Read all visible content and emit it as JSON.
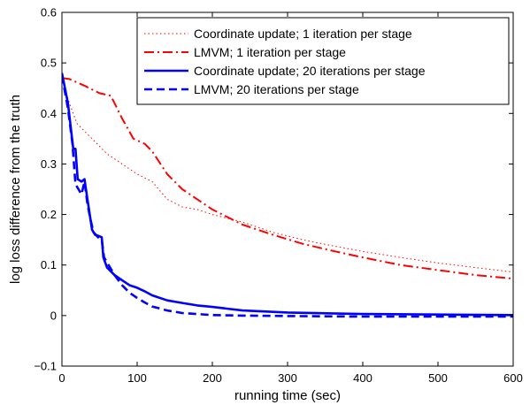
{
  "chart_data": {
    "type": "line",
    "title": "",
    "xlabel": "running time (sec)",
    "ylabel": "log loss difference from the truth",
    "xlim": [
      0,
      600
    ],
    "ylim": [
      -0.1,
      0.6
    ],
    "xticks": [
      0,
      100,
      200,
      300,
      400,
      500,
      600
    ],
    "xtick_labels": [
      "0",
      "100",
      "200",
      "300",
      "400",
      "500",
      "600"
    ],
    "yticks": [
      -0.1,
      0,
      0.1,
      0.2,
      0.3,
      0.4,
      0.5,
      0.6
    ],
    "ytick_labels": [
      "−0.1",
      "0",
      "0.1",
      "0.2",
      "0.3",
      "0.4",
      "0.5",
      "0.6"
    ],
    "grid": false,
    "legend_position": "top-right",
    "series": [
      {
        "name": "Coordinate update; 1 iteration per stage",
        "color": "#ff0000",
        "style": "dotted",
        "width": 1,
        "x": [
          0,
          10,
          20,
          40,
          60,
          80,
          100,
          120,
          140,
          160,
          180,
          200,
          240,
          280,
          320,
          360,
          400,
          450,
          500,
          550,
          600
        ],
        "y": [
          0.47,
          0.42,
          0.38,
          0.35,
          0.32,
          0.3,
          0.28,
          0.265,
          0.23,
          0.215,
          0.21,
          0.2,
          0.185,
          0.165,
          0.15,
          0.138,
          0.127,
          0.115,
          0.104,
          0.095,
          0.086
        ]
      },
      {
        "name": "LMVM; 1 iteration per stage",
        "color": "#ff0000",
        "style": "dashdot",
        "width": 2,
        "x": [
          0,
          10,
          30,
          50,
          65,
          80,
          95,
          110,
          120,
          140,
          160,
          180,
          200,
          240,
          280,
          320,
          360,
          400,
          450,
          500,
          550,
          600
        ],
        "y": [
          0.47,
          0.468,
          0.455,
          0.44,
          0.435,
          0.39,
          0.35,
          0.34,
          0.325,
          0.28,
          0.25,
          0.23,
          0.21,
          0.18,
          0.16,
          0.142,
          0.128,
          0.115,
          0.1,
          0.09,
          0.08,
          0.073
        ]
      },
      {
        "name": "Coordinate update; 20 iterations per stage",
        "color": "#0000ff",
        "style": "solid",
        "width": 2.6,
        "x": [
          0,
          8,
          15,
          18,
          21,
          23,
          26,
          30,
          33,
          36,
          40,
          44,
          48,
          53,
          55,
          60,
          70,
          80,
          90,
          100,
          110,
          120,
          140,
          160,
          180,
          200,
          240,
          300,
          400,
          500,
          600
        ],
        "y": [
          0.48,
          0.42,
          0.33,
          0.33,
          0.27,
          0.268,
          0.265,
          0.27,
          0.24,
          0.21,
          0.17,
          0.16,
          0.158,
          0.155,
          0.115,
          0.095,
          0.08,
          0.07,
          0.06,
          0.055,
          0.048,
          0.04,
          0.03,
          0.025,
          0.02,
          0.017,
          0.01,
          0.006,
          0.003,
          0.002,
          0.001
        ]
      },
      {
        "name": "LMVM; 20 iterations per stage",
        "color": "#0000ff",
        "style": "dashed",
        "width": 2.6,
        "x": [
          0,
          8,
          14,
          18,
          22,
          26,
          30,
          34,
          38,
          42,
          48,
          53,
          56,
          62,
          70,
          80,
          90,
          100,
          110,
          120,
          140,
          160,
          180,
          200,
          240,
          300,
          400,
          500,
          600
        ],
        "y": [
          0.475,
          0.41,
          0.34,
          0.26,
          0.25,
          0.24,
          0.265,
          0.22,
          0.19,
          0.165,
          0.155,
          0.15,
          0.115,
          0.1,
          0.08,
          0.06,
          0.045,
          0.035,
          0.026,
          0.018,
          0.01,
          0.005,
          0.003,
          0.001,
          0.0,
          -0.001,
          -0.002,
          -0.002,
          -0.002
        ]
      }
    ]
  }
}
